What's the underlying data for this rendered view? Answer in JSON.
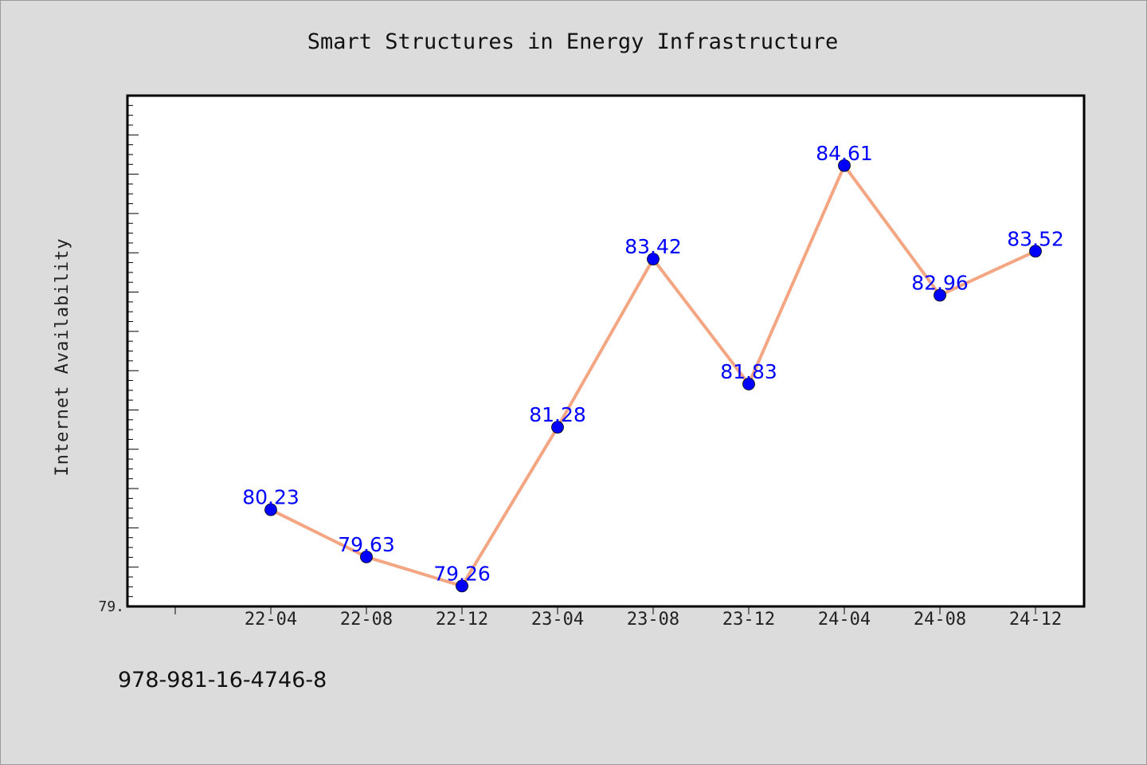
{
  "chart_data": {
    "type": "line",
    "title": "Smart Structures in Energy Infrastructure",
    "xlabel": "",
    "ylabel": "Internet Availability",
    "categories": [
      "22-04",
      "22-08",
      "22-12",
      "23-04",
      "23-08",
      "23-12",
      "24-04",
      "24-08",
      "24-12"
    ],
    "series": [
      {
        "values": [
          80.23,
          79.63,
          79.26,
          81.28,
          83.42,
          81.83,
          84.61,
          82.96,
          83.52
        ],
        "line_color": "#f4a582",
        "marker_color": "#0000ff"
      }
    ],
    "ylim": [
      79.0,
      85.5
    ],
    "y_tick_labels": [
      "79."
    ],
    "data_labels": [
      "80.23",
      "79.63",
      "79.26",
      "81.28",
      "83.42",
      "81.83",
      "84.61",
      "82.96",
      "83.52"
    ],
    "grid": false,
    "legend": "none",
    "background_color": "#dcdcdc",
    "plot_background_color": "#ffffff"
  },
  "footnote": "978-981-16-4746-8"
}
